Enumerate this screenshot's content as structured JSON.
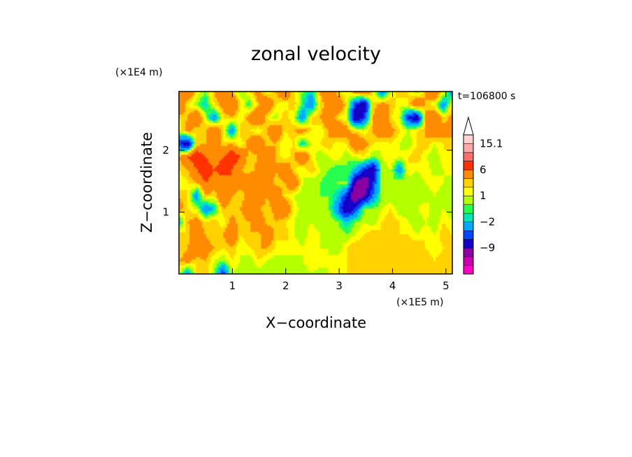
{
  "chart_data": {
    "type": "heatmap",
    "title": "zonal velocity",
    "xlabel": "X−coordinate",
    "ylabel": "Z−coordinate",
    "x_unit": "(×1E5 m)",
    "y_unit": "(×1E4 m)",
    "time_label": "t=106800 s",
    "x_ticks": [
      1,
      2,
      3,
      4,
      5
    ],
    "y_ticks": [
      1,
      2
    ],
    "xlim": [
      0.0,
      5.12
    ],
    "ylim": [
      0.0,
      2.95
    ],
    "grid": false,
    "colorbar": {
      "position": "right",
      "extend": "max",
      "levels": [
        -15,
        -12,
        -9,
        -6,
        -4,
        -2,
        -1,
        0,
        1,
        2,
        3,
        6,
        9,
        12,
        15.1
      ],
      "tick_labels": [
        {
          "value": 15.1,
          "label": "15.1"
        },
        {
          "value": 6,
          "label": "6"
        },
        {
          "value": 1,
          "label": "1"
        },
        {
          "value": -2,
          "label": "−2"
        },
        {
          "value": -9,
          "label": "−9"
        }
      ],
      "colors": [
        "#ff00c8",
        "#c800b4",
        "#8c00a0",
        "#1400c8",
        "#0046ff",
        "#00aaff",
        "#00e6b4",
        "#28ff50",
        "#b4ff00",
        "#ffff00",
        "#ffd200",
        "#ff8c00",
        "#ff3200",
        "#ff6e6e",
        "#ffaaaa",
        "#ffd2d2"
      ]
    },
    "field": {
      "description_values": "zonal velocity field values in colorbar units, rows from top (z=2.95) to bottom (z=0), columns from x=0 to x=5.12",
      "rows": [
        [
          3,
          6,
          2,
          0,
          3,
          6,
          3,
          0,
          2,
          4,
          1,
          3,
          6,
          2,
          0,
          -2,
          3,
          6,
          2,
          1,
          4,
          6,
          2,
          -4,
          1,
          3,
          2,
          0,
          3,
          6,
          2,
          -4
        ],
        [
          6,
          2,
          0,
          -2,
          2,
          4,
          6,
          2,
          -1,
          3,
          6,
          2,
          1,
          3,
          -1,
          -4,
          2,
          4,
          6,
          2,
          -6,
          -9,
          2,
          4,
          3,
          1,
          2,
          6,
          3,
          1,
          -4,
          2
        ],
        [
          2,
          3,
          6,
          1,
          -4,
          2,
          3,
          1,
          4,
          6,
          2,
          0,
          3,
          1,
          -4,
          2,
          3,
          6,
          2,
          1,
          -9,
          -6,
          3,
          6,
          2,
          1,
          -6,
          -9,
          3,
          6,
          2,
          4
        ],
        [
          1,
          4,
          2,
          3,
          6,
          2,
          -4,
          3,
          2,
          1,
          3,
          6,
          2,
          3,
          4,
          2,
          1,
          3,
          6,
          4,
          2,
          1,
          3,
          6,
          4,
          2,
          1,
          2,
          3,
          6,
          4,
          3
        ],
        [
          -6,
          -9,
          2,
          3,
          6,
          2,
          3,
          1,
          4,
          6,
          2,
          3,
          1,
          2,
          -2,
          1,
          2,
          3,
          1,
          2,
          6,
          4,
          2,
          1,
          2,
          1,
          0,
          2,
          3,
          1,
          2,
          3
        ],
        [
          3,
          6,
          9,
          6,
          3,
          6,
          9,
          6,
          2,
          3,
          6,
          3,
          1,
          3,
          6,
          2,
          0,
          1,
          2,
          0,
          1,
          2,
          0,
          1,
          2,
          1,
          2,
          3,
          1,
          0,
          2,
          1
        ],
        [
          2,
          3,
          6,
          9,
          6,
          9,
          6,
          3,
          2,
          4,
          6,
          3,
          6,
          2,
          1,
          3,
          1,
          0,
          -1,
          0,
          -2,
          -6,
          -9,
          0,
          1,
          -4,
          2,
          1,
          2,
          0,
          1,
          2
        ],
        [
          1,
          2,
          3,
          6,
          4,
          3,
          6,
          4,
          6,
          3,
          6,
          2,
          3,
          6,
          1,
          0,
          0,
          -1,
          0,
          0,
          -9,
          -12,
          -6,
          0,
          0,
          1,
          0,
          0,
          1,
          2,
          1,
          0
        ],
        [
          3,
          2,
          -4,
          3,
          2,
          6,
          3,
          2,
          4,
          6,
          3,
          6,
          2,
          1,
          0,
          1,
          0,
          0,
          -2,
          -6,
          -12,
          -9,
          -4,
          0,
          0,
          0,
          1,
          0,
          0,
          1,
          0,
          1
        ],
        [
          4,
          2,
          1,
          -4,
          -2,
          3,
          2,
          3,
          6,
          3,
          2,
          4,
          6,
          2,
          0,
          0,
          0,
          0,
          -4,
          -9,
          -6,
          0,
          0,
          1,
          2,
          0,
          0,
          1,
          2,
          0,
          1,
          0
        ],
        [
          -2,
          3,
          4,
          2,
          3,
          1,
          4,
          2,
          3,
          6,
          2,
          3,
          2,
          1,
          0,
          1,
          0,
          1,
          0,
          -2,
          0,
          1,
          0,
          2,
          3,
          2,
          1,
          0,
          1,
          0,
          2,
          1
        ],
        [
          3,
          2,
          6,
          3,
          2,
          3,
          6,
          2,
          3,
          2,
          6,
          2,
          3,
          1,
          0,
          2,
          1,
          0,
          1,
          0,
          1,
          2,
          3,
          2,
          3,
          2,
          2,
          1,
          2,
          1,
          3,
          2
        ],
        [
          2,
          3,
          6,
          4,
          3,
          2,
          3,
          1,
          2,
          3,
          3,
          2,
          1,
          2,
          1,
          2,
          1,
          1,
          0,
          2,
          3,
          3,
          3,
          2,
          3,
          2,
          3,
          3,
          2,
          1,
          2,
          2
        ],
        [
          3,
          4,
          2,
          3,
          1,
          0,
          2,
          1,
          0,
          2,
          1,
          0,
          1,
          0,
          1,
          2,
          2,
          1,
          2,
          2,
          3,
          2,
          3,
          3,
          2,
          3,
          2,
          3,
          3,
          2,
          3,
          2
        ],
        [
          1,
          -4,
          2,
          3,
          0,
          -6,
          1,
          0,
          1,
          0,
          0,
          1,
          0,
          1,
          0,
          1,
          0,
          1,
          1,
          2,
          2,
          3,
          2,
          3,
          3,
          2,
          3,
          2,
          2,
          3,
          2,
          2
        ]
      ]
    }
  }
}
